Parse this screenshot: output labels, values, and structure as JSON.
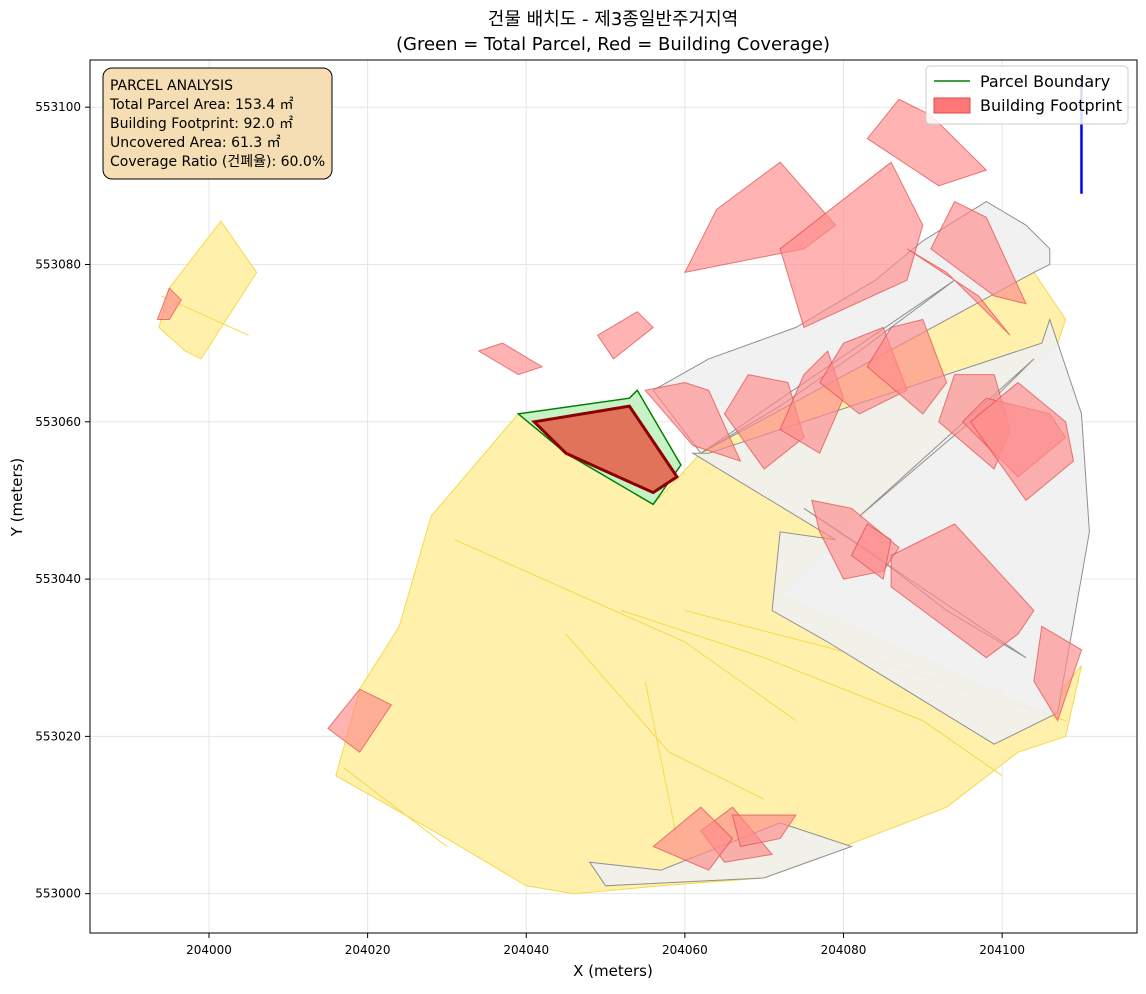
{
  "chart_data": {
    "type": "map",
    "title": "건물 배치도 - 제3종일반주거지역",
    "subtitle": "(Green = Total Parcel, Red = Building Coverage)",
    "xlabel": "X (meters)",
    "ylabel": "Y (meters)",
    "xlim": [
      203985,
      204117
    ],
    "ylim": [
      552995,
      553106
    ],
    "xticks": [
      204000,
      204020,
      204040,
      204060,
      204080,
      204100
    ],
    "yticks": [
      553000,
      553020,
      553040,
      553060,
      553080,
      553100
    ],
    "xtick_labels": [
      "204000",
      "204020",
      "204040",
      "204060",
      "204080",
      "204100"
    ],
    "ytick_labels": [
      "553000",
      "553020",
      "553040",
      "553060",
      "553080",
      "553100"
    ],
    "grid": true,
    "legend": {
      "position": "top-right",
      "entries": [
        {
          "label": "Parcel Boundary",
          "kind": "line",
          "color": "#008000"
        },
        {
          "label": "Building Footprint",
          "kind": "patch",
          "color": "#ff7777"
        }
      ]
    },
    "info_box": {
      "position": "top-left",
      "lines": [
        "PARCEL ANALYSIS",
        "Total Parcel Area: 153.4 ㎡",
        "Building Footprint: 92.0 ㎡",
        "Uncovered Area: 61.3 ㎡",
        "Coverage Ratio (건폐율): 60.0%"
      ]
    },
    "stats": {
      "total_parcel_area_m2": 153.4,
      "building_footprint_m2": 92.0,
      "uncovered_area_m2": 61.3,
      "coverage_ratio_pct": 60.0
    },
    "colors": {
      "road": "#fff0a8",
      "road_edge": "#f5d94a",
      "parcel_gray": "#f0f0f0",
      "parcel_gray_edge": "#909090",
      "building": "#ff8a8a",
      "building_edge": "#e04a4a",
      "target_parcel_fill": "#c6f2c6",
      "target_parcel_edge": "#008000",
      "target_building_fill": "#e0735a",
      "target_building_edge": "#8b0000",
      "north_arrow": "#0000ff",
      "info_box_fill": "#f5deb3"
    },
    "roads": [
      [
        [
          204001.5,
          553085.5
        ],
        [
          204006,
          553079
        ],
        [
          203999,
          553068
        ],
        [
          203997,
          553069
        ],
        [
          203993.7,
          553072
        ],
        [
          203995,
          553077
        ]
      ],
      [
        [
          204028,
          553048
        ],
        [
          204039,
          553061
        ],
        [
          204056,
          553049.5
        ],
        [
          204062,
          553056
        ],
        [
          204104,
          553079
        ],
        [
          204108,
          553073
        ],
        [
          204107,
          553070
        ],
        [
          204079,
          553045
        ],
        [
          204072,
          553038
        ],
        [
          204105,
          553023
        ],
        [
          204110,
          553029
        ],
        [
          204108,
          553020
        ],
        [
          204102,
          553018
        ],
        [
          204093,
          553011
        ],
        [
          204080,
          553006
        ],
        [
          204070,
          553002
        ],
        [
          204057,
          553001
        ],
        [
          204046,
          553000
        ],
        [
          204040,
          553001
        ],
        [
          204030,
          553007
        ],
        [
          204016,
          553015
        ],
        [
          204019,
          553026
        ],
        [
          204024,
          553034
        ]
      ]
    ],
    "road_lines": [
      [
        [
          204039,
          553061
        ],
        [
          204052,
          553052
        ]
      ],
      [
        [
          204031,
          553045
        ],
        [
          204060,
          553032
        ],
        [
          204074,
          553022
        ]
      ],
      [
        [
          204052,
          553036
        ],
        [
          204070,
          553030
        ],
        [
          204090,
          553022
        ],
        [
          204100,
          553015
        ]
      ],
      [
        [
          204045,
          553033
        ],
        [
          204058,
          553018
        ],
        [
          204070,
          553012
        ]
      ],
      [
        [
          204055,
          553027
        ],
        [
          204059,
          553007
        ]
      ],
      [
        [
          204060,
          553036
        ],
        [
          204083,
          553030
        ],
        [
          204108,
          553022
        ]
      ],
      [
        [
          204017,
          553016
        ],
        [
          204030,
          553006
        ]
      ],
      [
        [
          203994,
          553076
        ],
        [
          204005,
          553071
        ]
      ]
    ],
    "parcels": [
      [
        [
          204056,
          553064
        ],
        [
          204063,
          553068
        ],
        [
          204074,
          553072
        ],
        [
          204084,
          553078
        ],
        [
          204090,
          553083
        ],
        [
          204098,
          553088
        ],
        [
          204103,
          553085
        ],
        [
          204106,
          553082
        ],
        [
          204106,
          553080
        ],
        [
          204104,
          553079
        ],
        [
          204062,
          553056
        ]
      ],
      [
        [
          204061,
          553056
        ],
        [
          204063,
          553056
        ],
        [
          204105,
          553070
        ],
        [
          204106,
          553073
        ],
        [
          204110,
          553061
        ],
        [
          204111,
          553046
        ],
        [
          204107,
          553023
        ],
        [
          204099,
          553019
        ],
        [
          204078,
          553032
        ],
        [
          204071,
          553036
        ],
        [
          204072,
          553046
        ],
        [
          204079,
          553045
        ]
      ],
      [
        [
          204048,
          553004
        ],
        [
          204057,
          553003
        ],
        [
          204072,
          553009
        ],
        [
          204081,
          553006
        ],
        [
          204070,
          553002
        ],
        [
          204050,
          553001
        ]
      ],
      [
        [
          204062,
          553056
        ],
        [
          204072,
          553062
        ],
        [
          204082,
          553069
        ],
        [
          204094,
          553078
        ]
      ],
      [
        [
          204075,
          553049
        ],
        [
          204084,
          553043
        ],
        [
          204093,
          553036
        ],
        [
          204103,
          553030
        ]
      ],
      [
        [
          204082,
          553048
        ],
        [
          204089,
          553054
        ],
        [
          204096,
          553060
        ],
        [
          204104,
          553068
        ]
      ]
    ],
    "buildings": [
      [
        [
          204049,
          553071
        ],
        [
          204054,
          553074
        ],
        [
          204056,
          553072
        ],
        [
          204051,
          553068
        ]
      ],
      [
        [
          204037,
          553070
        ],
        [
          204042,
          553067
        ],
        [
          204039,
          553066
        ],
        [
          204034,
          553069
        ]
      ],
      [
        [
          204060,
          553079
        ],
        [
          204075,
          553082
        ],
        [
          204079,
          553085
        ],
        [
          204072,
          553093
        ],
        [
          204064,
          553087
        ]
      ],
      [
        [
          204072,
          553082
        ],
        [
          204086,
          553093
        ],
        [
          204090,
          553085
        ],
        [
          204088,
          553078
        ],
        [
          204075,
          553072
        ]
      ],
      [
        [
          204083,
          553096
        ],
        [
          204092,
          553090
        ],
        [
          204098,
          553092
        ],
        [
          204091,
          553099
        ],
        [
          204087,
          553101
        ]
      ],
      [
        [
          204088,
          553082
        ],
        [
          204097,
          553076
        ],
        [
          204101,
          553071
        ],
        [
          204097,
          553075
        ],
        [
          204093,
          553079
        ]
      ],
      [
        [
          204091,
          553082
        ],
        [
          204099,
          553076
        ],
        [
          204103,
          553075
        ],
        [
          204098,
          553086
        ],
        [
          204094,
          553088
        ]
      ],
      [
        [
          204055,
          553064
        ],
        [
          204061,
          553057
        ],
        [
          204067,
          553055
        ],
        [
          204063,
          553064
        ],
        [
          204060,
          553065
        ]
      ],
      [
        [
          204065,
          553061
        ],
        [
          204070,
          553054
        ],
        [
          204075,
          553058
        ],
        [
          204073,
          553065
        ],
        [
          204068,
          553066
        ]
      ],
      [
        [
          204072,
          553059
        ],
        [
          204077,
          553056
        ],
        [
          204080,
          553063
        ],
        [
          204078,
          553069
        ],
        [
          204075,
          553066
        ]
      ],
      [
        [
          204077,
          553065
        ],
        [
          204082,
          553061
        ],
        [
          204088,
          553064
        ],
        [
          204085,
          553072
        ],
        [
          204080,
          553070
        ]
      ],
      [
        [
          204083,
          553067
        ],
        [
          204090,
          553061
        ],
        [
          204093,
          553065
        ],
        [
          204090,
          553073
        ],
        [
          204086,
          553072
        ]
      ],
      [
        [
          204092,
          553060
        ],
        [
          204099,
          553054
        ],
        [
          204101,
          553059
        ],
        [
          204099,
          553066
        ],
        [
          204094,
          553066
        ]
      ],
      [
        [
          204095,
          553060
        ],
        [
          204102,
          553053
        ],
        [
          204108,
          553058
        ],
        [
          204106,
          553061
        ],
        [
          204098,
          553063
        ]
      ],
      [
        [
          204076,
          553050
        ],
        [
          204081,
          553049
        ],
        [
          204087,
          553044
        ],
        [
          204085,
          553041
        ],
        [
          204080,
          553040
        ],
        [
          204077,
          553046
        ]
      ],
      [
        [
          204081,
          553043
        ],
        [
          204083,
          553047
        ],
        [
          204086,
          553045
        ],
        [
          204085,
          553040
        ]
      ],
      [
        [
          204086,
          553043
        ],
        [
          204094,
          553047
        ],
        [
          204104,
          553036
        ],
        [
          204102,
          553033
        ],
        [
          204098,
          553030
        ],
        [
          204086,
          553039
        ]
      ],
      [
        [
          204096,
          553060
        ],
        [
          204102,
          553065
        ],
        [
          204108,
          553060
        ],
        [
          204109,
          553055
        ],
        [
          204103,
          553050
        ]
      ],
      [
        [
          204105,
          553034
        ],
        [
          204110,
          553031
        ],
        [
          204107,
          553022
        ],
        [
          204104,
          553027
        ]
      ],
      [
        [
          204015,
          553021
        ],
        [
          204019,
          553026
        ],
        [
          204023,
          553024
        ],
        [
          204019,
          553018
        ]
      ],
      [
        [
          204065,
          553004
        ],
        [
          204071,
          553005
        ],
        [
          204066,
          553011
        ],
        [
          204062,
          553008
        ]
      ],
      [
        [
          204066,
          553010
        ],
        [
          204074,
          553010
        ],
        [
          204072,
          553007
        ],
        [
          204067,
          553006
        ]
      ],
      [
        [
          204056,
          553006
        ],
        [
          204062,
          553011
        ],
        [
          204066,
          553007
        ],
        [
          204063,
          553003
        ]
      ],
      [
        [
          203993.5,
          553073
        ],
        [
          203995,
          553077
        ],
        [
          203996.5,
          553075.5
        ],
        [
          203995,
          553073
        ]
      ]
    ],
    "target_parcel": [
      [
        204039,
        553061
      ],
      [
        204053,
        553063
      ],
      [
        204054,
        553064
      ],
      [
        204059.5,
        553054.5
      ],
      [
        204056,
        553049.5
      ],
      [
        204045,
        553056
      ]
    ],
    "target_building": [
      [
        204041,
        553060
      ],
      [
        204053,
        553062
      ],
      [
        204059,
        553053
      ],
      [
        204056,
        553051
      ],
      [
        204045,
        553056
      ]
    ],
    "north_arrow": [
      [
        204110,
        553104
      ],
      [
        204110,
        553089
      ]
    ]
  }
}
